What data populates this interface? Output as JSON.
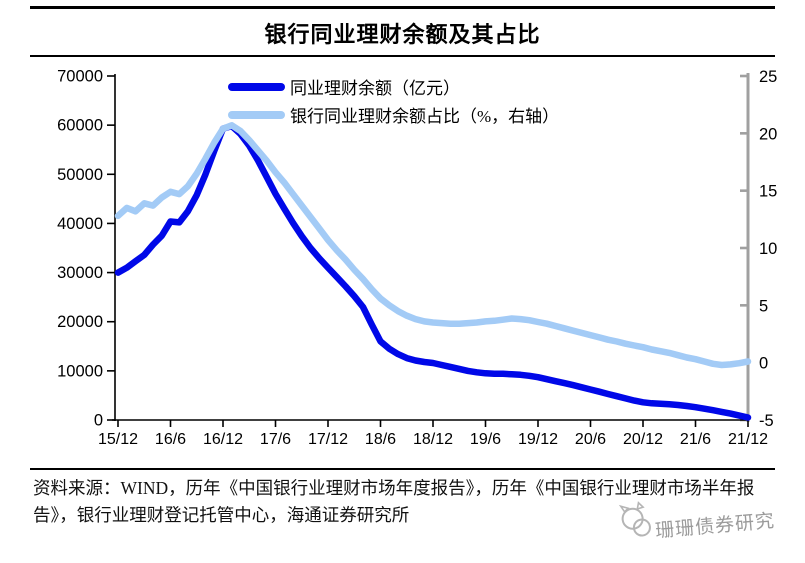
{
  "page": {
    "title": "银行同业理财余额及其占比",
    "source_note": "资料来源：WIND，历年《中国银行业理财市场年度报告》，历年《中国银行业理财市场半年报告》，银行业理财登记托管中心，海通证券研究所",
    "watermark": "珊珊债券研究"
  },
  "colors": {
    "balance_line": "#0008E8",
    "share_line": "#A3CBF6",
    "axis_black": "#000000",
    "right_axis_gray": "#A0A0A0",
    "watermark_gray": "#9B9B9B"
  },
  "chart_data": {
    "type": "line",
    "title": "银行同业理财余额及其占比",
    "grid": false,
    "legend_position": "top-center",
    "x": [
      "15/12",
      "16/1",
      "16/2",
      "16/3",
      "16/4",
      "16/5",
      "16/6",
      "16/7",
      "16/8",
      "16/9",
      "16/10",
      "16/11",
      "16/12",
      "17/1",
      "17/2",
      "17/3",
      "17/4",
      "17/5",
      "17/6",
      "17/7",
      "17/8",
      "17/9",
      "17/10",
      "17/11",
      "17/12",
      "18/1",
      "18/2",
      "18/3",
      "18/4",
      "18/5",
      "18/6",
      "18/7",
      "18/8",
      "18/9",
      "18/10",
      "18/11",
      "18/12",
      "19/1",
      "19/2",
      "19/3",
      "19/4",
      "19/5",
      "19/6",
      "19/7",
      "19/8",
      "19/9",
      "19/10",
      "19/11",
      "19/12",
      "20/1",
      "20/2",
      "20/3",
      "20/4",
      "20/5",
      "20/6",
      "20/7",
      "20/8",
      "20/9",
      "20/10",
      "20/11",
      "20/12",
      "21/1",
      "21/2",
      "21/3",
      "21/4",
      "21/5",
      "21/6",
      "21/7",
      "21/8",
      "21/9",
      "21/10",
      "21/11",
      "21/12"
    ],
    "x_tick_labels": [
      "15/12",
      "16/6",
      "16/12",
      "17/6",
      "17/12",
      "18/6",
      "18/12",
      "19/6",
      "19/12",
      "20/6",
      "20/12",
      "21/6",
      "21/12"
    ],
    "y_left": {
      "label": "亿元",
      "min": 0,
      "max": 70000,
      "ticks": [
        0,
        10000,
        20000,
        30000,
        40000,
        50000,
        60000,
        70000
      ]
    },
    "y_right": {
      "label": "%",
      "min": -5,
      "max": 25,
      "ticks": [
        -5,
        0,
        5,
        10,
        15,
        20,
        25
      ]
    },
    "series": [
      {
        "name": "同业理财余额（亿元）",
        "axis": "left",
        "color": "#0008E8",
        "values": [
          30000,
          31000,
          32300,
          33600,
          35700,
          37500,
          40400,
          40200,
          42500,
          45800,
          50000,
          54800,
          59300,
          59800,
          58200,
          55800,
          52800,
          49400,
          46000,
          43000,
          40100,
          37400,
          35000,
          32900,
          31000,
          29100,
          27200,
          25200,
          23000,
          19400,
          16000,
          14500,
          13400,
          12600,
          12100,
          11800,
          11600,
          11200,
          10800,
          10400,
          10000,
          9700,
          9500,
          9400,
          9400,
          9300,
          9200,
          9000,
          8700,
          8300,
          7900,
          7500,
          7100,
          6650,
          6200,
          5750,
          5300,
          4850,
          4400,
          3950,
          3600,
          3400,
          3300,
          3200,
          3050,
          2850,
          2600,
          2300,
          2000,
          1650,
          1300,
          900,
          500
        ]
      },
      {
        "name": "银行同业理财余额占比（%，右轴）",
        "axis": "right",
        "color": "#A3CBF6",
        "values": [
          12.8,
          13.5,
          13.2,
          13.9,
          13.7,
          14.4,
          14.9,
          14.7,
          15.4,
          16.5,
          17.8,
          19.2,
          20.4,
          20.7,
          20.2,
          19.4,
          18.5,
          17.6,
          16.6,
          15.7,
          14.7,
          13.7,
          12.7,
          11.7,
          10.7,
          9.8,
          9.0,
          8.1,
          7.3,
          6.4,
          5.6,
          5.0,
          4.5,
          4.1,
          3.8,
          3.6,
          3.5,
          3.45,
          3.4,
          3.4,
          3.45,
          3.5,
          3.6,
          3.65,
          3.75,
          3.85,
          3.8,
          3.7,
          3.55,
          3.4,
          3.2,
          3.0,
          2.8,
          2.6,
          2.4,
          2.2,
          2.0,
          1.85,
          1.65,
          1.5,
          1.35,
          1.15,
          1.0,
          0.85,
          0.65,
          0.45,
          0.3,
          0.1,
          -0.1,
          -0.2,
          -0.15,
          -0.05,
          0.1
        ]
      }
    ]
  }
}
